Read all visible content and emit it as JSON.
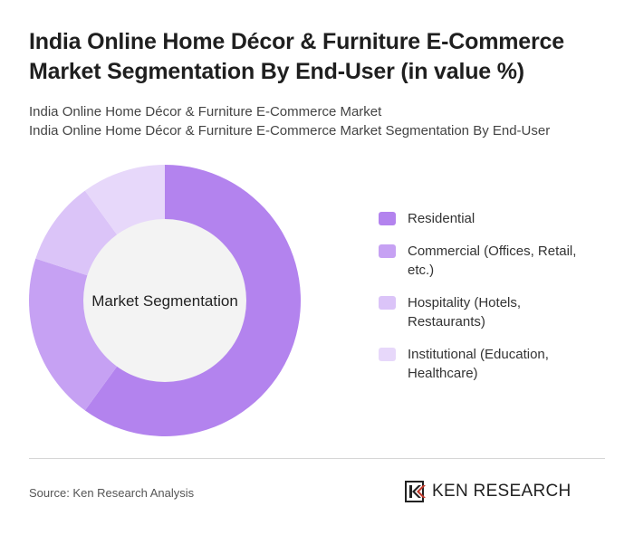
{
  "title": "India Online Home Décor & Furniture E-Commerce Market Segmentation By End-User (in value %)",
  "subtitle_lines": [
    "India Online Home Décor & Furniture E-Commerce Market",
    "India Online Home Décor & Furniture E-Commerce Market Segmentation By End-User"
  ],
  "chart_data": {
    "type": "pie",
    "variant": "donut",
    "center_label": "Market Segmentation",
    "categories": [
      "Residential",
      "Commercial (Offices, Retail, etc.)",
      "Hospitality (Hotels, Restaurants)",
      "Institutional (Education, Healthcare)"
    ],
    "values": [
      60,
      20,
      10,
      10
    ],
    "colors": [
      "#b383ee",
      "#c6a1f3",
      "#dbc4f8",
      "#e7d8fa"
    ],
    "center_color": "#f3f3f3",
    "legend_position": "right"
  },
  "legend_labels": [
    [
      "Residential"
    ],
    [
      "Commercial (Offices, Retail,",
      "etc.)"
    ],
    [
      "Hospitality (Hotels,",
      "Restaurants)"
    ],
    [
      "Institutional (Education,",
      "Healthcare)"
    ]
  ],
  "footer": {
    "source": "Source: Ken Research Analysis",
    "logo_text": "KEN RESEARCH"
  }
}
